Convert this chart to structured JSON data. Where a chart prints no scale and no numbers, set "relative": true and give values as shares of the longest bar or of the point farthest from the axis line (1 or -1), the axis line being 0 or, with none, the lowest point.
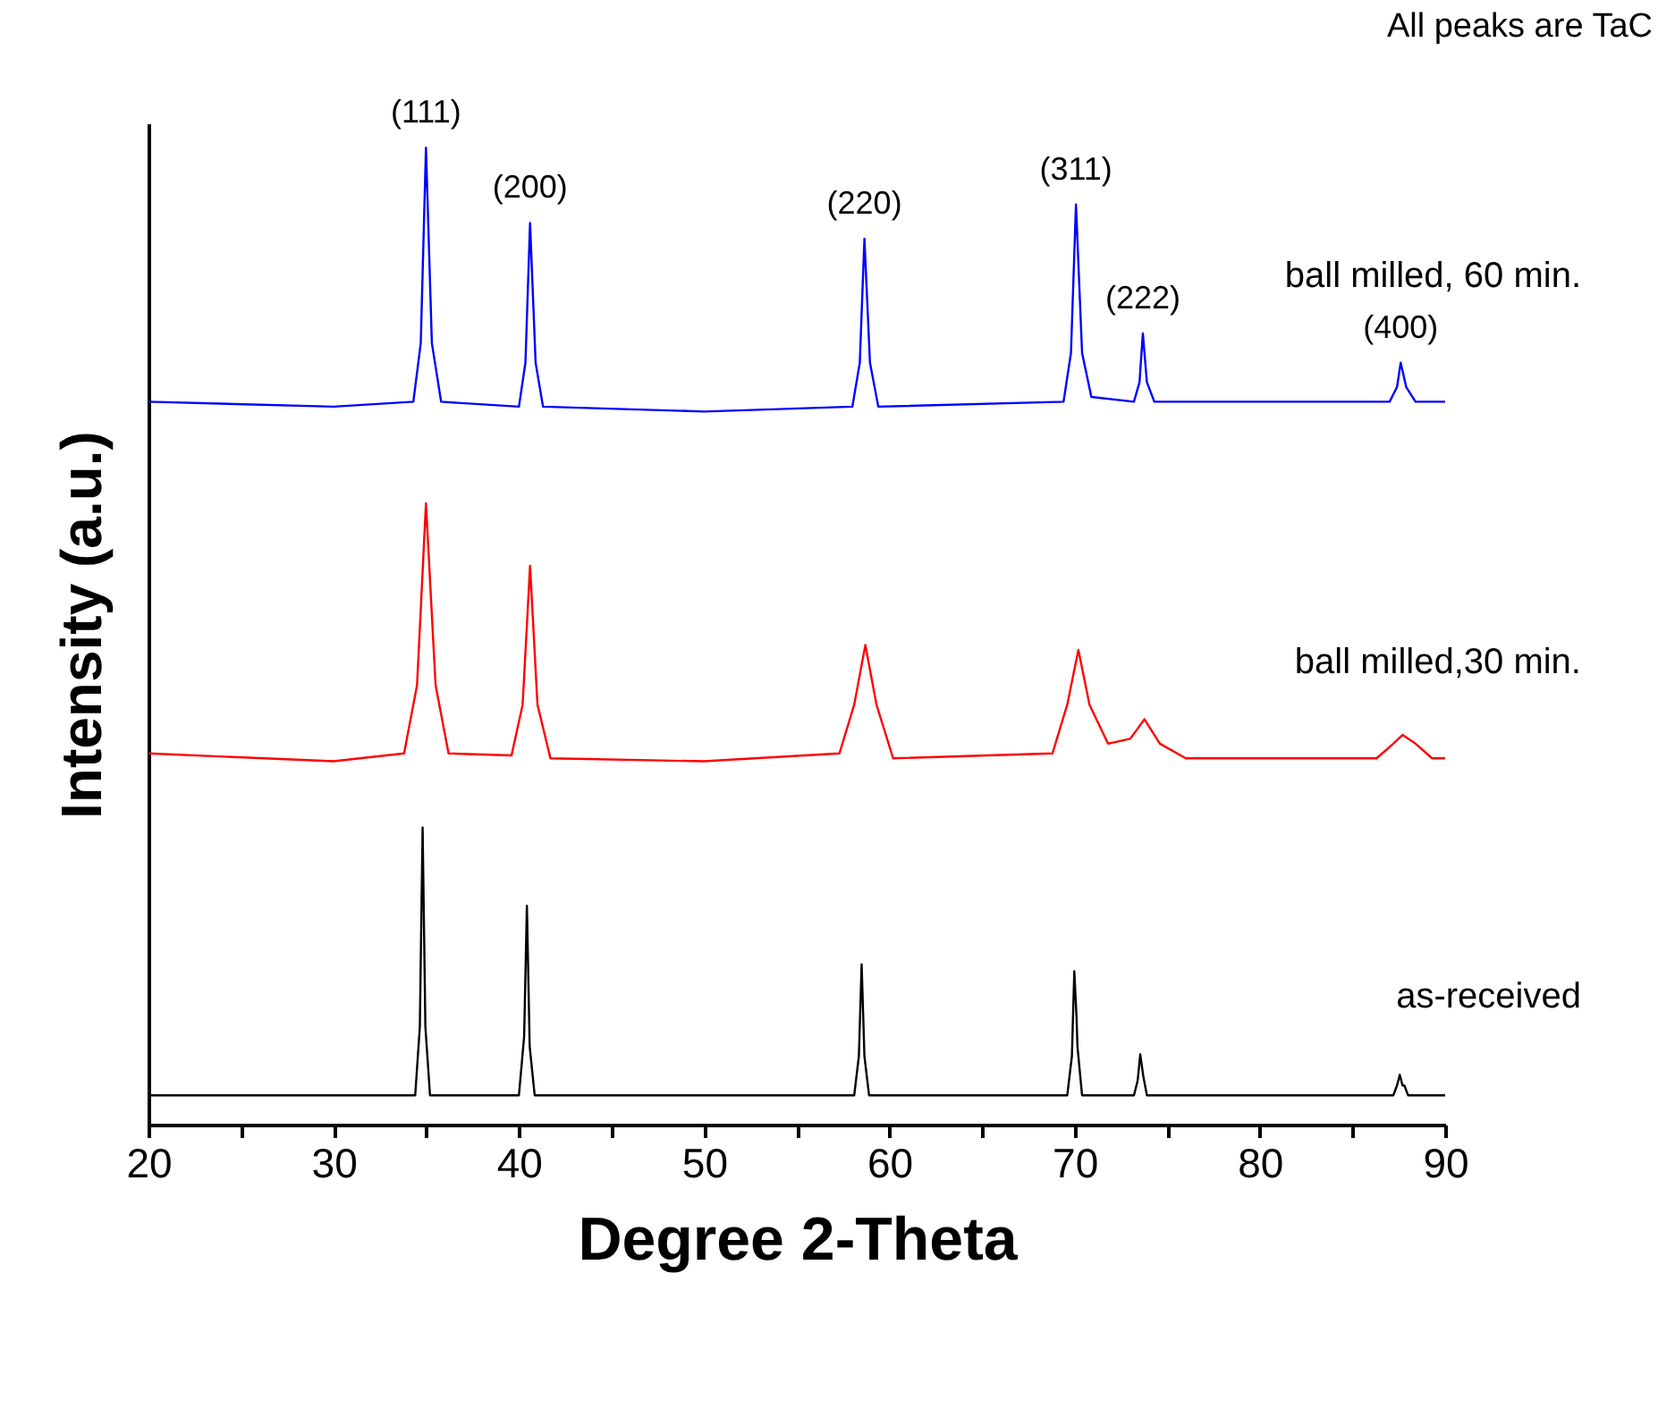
{
  "chart_data": {
    "type": "line",
    "relative": true,
    "xlabel": "Degree 2-Theta",
    "ylabel": "Intensity (a.u.)",
    "xlim": [
      20,
      90
    ],
    "xticks": [
      20,
      {
        "value": 25,
        "label": null
      },
      30,
      {
        "value": 35,
        "label": null
      },
      40,
      {
        "value": 45,
        "label": null
      },
      50,
      {
        "value": 55,
        "label": null
      },
      60,
      {
        "value": 65,
        "label": null
      },
      70,
      {
        "value": 75,
        "label": null
      },
      80,
      {
        "value": 85,
        "label": null
      },
      90
    ],
    "grid": false,
    "marker": "none",
    "line_style": "solid",
    "series": [
      {
        "name": "ball milled, 60 min.",
        "color": "#0000ff",
        "x": [
          20,
          30,
          34.3,
          34.7,
          34.98,
          35.3,
          35.8,
          40.0,
          40.35,
          40.6,
          40.9,
          41.3,
          50,
          58.0,
          58.4,
          58.65,
          58.95,
          59.4,
          69.4,
          69.8,
          70.07,
          70.4,
          70.9,
          73.2,
          73.5,
          73.68,
          73.9,
          74.3,
          87.0,
          87.4,
          87.6,
          87.9,
          88.4,
          90
        ],
        "values": [
          0.74,
          0.735,
          0.74,
          0.8,
          1,
          0.8,
          0.74,
          0.735,
          0.78,
          0.923,
          0.78,
          0.735,
          0.73,
          0.735,
          0.78,
          0.907,
          0.78,
          0.735,
          0.74,
          0.79,
          0.942,
          0.79,
          0.745,
          0.74,
          0.76,
          0.81,
          0.76,
          0.74,
          0.74,
          0.755,
          0.78,
          0.755,
          0.74,
          0.74
        ]
      },
      {
        "name": "ball milled,30 min.",
        "color": "#ff0000",
        "x": [
          20,
          30,
          33.8,
          34.5,
          34.98,
          35.5,
          36.2,
          39.6,
          40.2,
          40.6,
          41.0,
          41.7,
          50,
          57.3,
          58.1,
          58.7,
          59.3,
          60.2,
          68.8,
          69.6,
          70.2,
          70.8,
          71.8,
          73.0,
          73.77,
          74.6,
          76,
          86.3,
          87.2,
          87.7,
          88.4,
          89.3,
          90
        ],
        "values": [
          0.38,
          0.372,
          0.38,
          0.45,
          0.636,
          0.45,
          0.38,
          0.378,
          0.43,
          0.572,
          0.43,
          0.375,
          0.372,
          0.38,
          0.43,
          0.491,
          0.43,
          0.375,
          0.38,
          0.43,
          0.486,
          0.43,
          0.39,
          0.395,
          0.415,
          0.39,
          0.375,
          0.375,
          0.39,
          0.399,
          0.39,
          0.375,
          0.375
        ]
      },
      {
        "name": "as-received",
        "color": "#000000",
        "x": [
          20,
          34.4,
          34.65,
          34.8,
          34.95,
          35.2,
          40.0,
          40.28,
          40.43,
          40.58,
          40.85,
          58.1,
          58.35,
          58.5,
          58.65,
          58.9,
          69.6,
          69.85,
          69.98,
          70.1,
          70.15,
          70.4,
          73.2,
          73.4,
          73.54,
          73.7,
          73.9,
          87.2,
          87.4,
          87.55,
          87.7,
          87.8,
          88.0,
          90
        ],
        "values": [
          0.03,
          0.03,
          0.1,
          0.304,
          0.1,
          0.03,
          0.03,
          0.09,
          0.224,
          0.08,
          0.03,
          0.03,
          0.07,
          0.164,
          0.07,
          0.03,
          0.03,
          0.07,
          0.157,
          0.11,
          0.08,
          0.03,
          0.03,
          0.045,
          0.072,
          0.05,
          0.03,
          0.03,
          0.04,
          0.051,
          0.04,
          0.04,
          0.03,
          0.03
        ]
      }
    ],
    "annotations": [
      "All peaks are TaC",
      {
        "text": "(111)",
        "x": 34.98,
        "y": 1
      },
      {
        "text": "(200)",
        "x": 40.6,
        "y": 0.923
      },
      {
        "text": "(220)",
        "x": 58.65,
        "y": 0.907
      },
      {
        "text": "(311)",
        "x": 70.07,
        "y": 0.942
      },
      {
        "text": "(222)",
        "x": 73.68,
        "y": 0.81
      },
      {
        "text": "(400)",
        "x": 87.6,
        "y": 0.78
      }
    ]
  }
}
